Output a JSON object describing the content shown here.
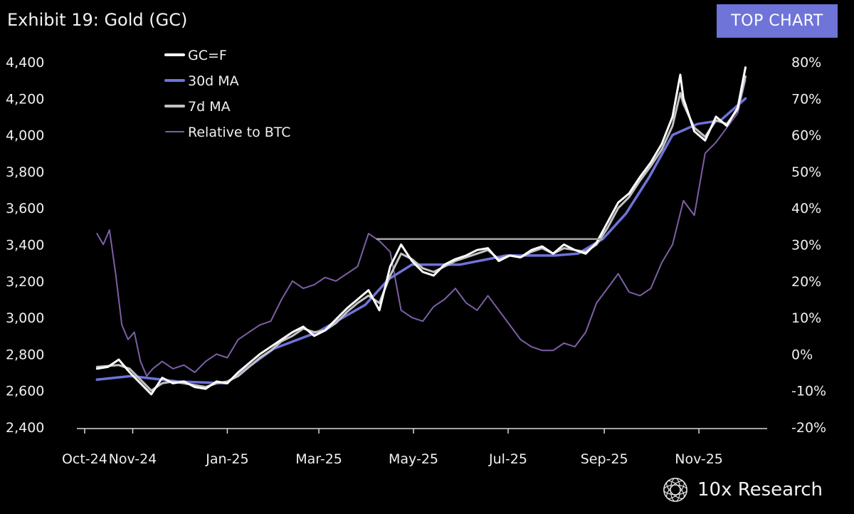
{
  "header": {
    "title": "Exhibit 19: Gold (GC)",
    "badge": "TOP CHART",
    "badge_color": "#6e74d8"
  },
  "brand": {
    "name": "10x Research",
    "logo_icon": "globe-wireframe-icon"
  },
  "chart_data": {
    "type": "line",
    "title": "Exhibit 19: Gold (GC)",
    "x_start": "2024-10-09",
    "x_end": "2025-12-01",
    "x_axis_min": "2024-09-26",
    "x_axis_max": "2025-12-15",
    "x_ticks": [
      {
        "label": "Oct-24",
        "date": "2024-10-01"
      },
      {
        "label": "Nov-24",
        "date": "2024-11-01"
      },
      {
        "label": "Jan-25",
        "date": "2025-01-01"
      },
      {
        "label": "Mar-25",
        "date": "2025-03-01"
      },
      {
        "label": "May-25",
        "date": "2025-05-01"
      },
      {
        "label": "Jul-25",
        "date": "2025-07-01"
      },
      {
        "label": "Sep-25",
        "date": "2025-09-01"
      },
      {
        "label": "Nov-25",
        "date": "2025-11-01"
      }
    ],
    "y_left": {
      "min": 2400,
      "max": 4400,
      "ticks": [
        "2,400",
        "2,600",
        "2,800",
        "3,000",
        "3,200",
        "3,400",
        "3,600",
        "3,800",
        "4,000",
        "4,200",
        "4,400"
      ]
    },
    "y_right": {
      "min": -20,
      "max": 80,
      "ticks": [
        "-20%",
        "-10%",
        "0%",
        "10%",
        "20%",
        "30%",
        "40%",
        "50%",
        "60%",
        "70%",
        "80%"
      ]
    },
    "reference_line": {
      "value": 3430,
      "from": "2025-04-07",
      "to": "2025-08-31",
      "color": "#a6a6a6"
    },
    "series": [
      {
        "name": "GC=F",
        "axis": "left",
        "color": "#ffffff",
        "width": 3,
        "x": [
          "2024-10-09",
          "2024-10-16",
          "2024-10-23",
          "2024-10-30",
          "2024-11-06",
          "2024-11-13",
          "2024-11-20",
          "2024-11-27",
          "2024-12-04",
          "2024-12-11",
          "2024-12-18",
          "2024-12-25",
          "2025-01-01",
          "2025-01-08",
          "2025-01-15",
          "2025-01-22",
          "2025-01-29",
          "2025-02-05",
          "2025-02-12",
          "2025-02-19",
          "2025-02-26",
          "2025-03-05",
          "2025-03-12",
          "2025-03-19",
          "2025-03-26",
          "2025-04-02",
          "2025-04-09",
          "2025-04-16",
          "2025-04-23",
          "2025-04-30",
          "2025-05-07",
          "2025-05-14",
          "2025-05-21",
          "2025-05-28",
          "2025-06-04",
          "2025-06-11",
          "2025-06-18",
          "2025-06-25",
          "2025-07-02",
          "2025-07-09",
          "2025-07-16",
          "2025-07-23",
          "2025-07-30",
          "2025-08-06",
          "2025-08-13",
          "2025-08-20",
          "2025-08-27",
          "2025-09-03",
          "2025-09-10",
          "2025-09-17",
          "2025-09-24",
          "2025-10-01",
          "2025-10-08",
          "2025-10-15",
          "2025-10-20",
          "2025-10-22",
          "2025-10-29",
          "2025-11-05",
          "2025-11-12",
          "2025-11-19",
          "2025-11-26",
          "2025-12-01"
        ],
        "values": [
          2720,
          2730,
          2770,
          2700,
          2640,
          2580,
          2670,
          2640,
          2650,
          2620,
          2610,
          2650,
          2640,
          2700,
          2750,
          2800,
          2840,
          2880,
          2920,
          2950,
          2900,
          2930,
          2990,
          3050,
          3100,
          3150,
          3040,
          3280,
          3400,
          3310,
          3250,
          3230,
          3290,
          3320,
          3340,
          3370,
          3380,
          3310,
          3340,
          3330,
          3370,
          3390,
          3350,
          3400,
          3370,
          3350,
          3410,
          3520,
          3630,
          3680,
          3770,
          3850,
          3950,
          4100,
          4330,
          4200,
          4020,
          3970,
          4100,
          4050,
          4150,
          4370
        ]
      },
      {
        "name": "30d MA",
        "axis": "left",
        "color": "#6f73d9",
        "width": 3.5,
        "x": [
          "2024-10-09",
          "2024-10-31",
          "2024-11-30",
          "2024-12-31",
          "2025-01-31",
          "2025-02-28",
          "2025-03-31",
          "2025-04-15",
          "2025-04-30",
          "2025-05-31",
          "2025-06-30",
          "2025-07-31",
          "2025-08-15",
          "2025-08-31",
          "2025-09-15",
          "2025-09-30",
          "2025-10-15",
          "2025-10-31",
          "2025-11-15",
          "2025-12-01"
        ],
        "values": [
          2660,
          2680,
          2650,
          2640,
          2830,
          2920,
          3070,
          3210,
          3290,
          3290,
          3340,
          3340,
          3350,
          3430,
          3570,
          3770,
          4000,
          4060,
          4080,
          4200
        ]
      },
      {
        "name": "7d MA",
        "axis": "left",
        "color": "#c2c2c2",
        "width": 3,
        "x": [
          "2024-10-09",
          "2024-10-16",
          "2024-10-23",
          "2024-10-30",
          "2024-11-06",
          "2024-11-13",
          "2024-11-20",
          "2024-11-27",
          "2024-12-04",
          "2024-12-11",
          "2024-12-18",
          "2024-12-25",
          "2025-01-01",
          "2025-01-08",
          "2025-01-15",
          "2025-01-22",
          "2025-01-29",
          "2025-02-05",
          "2025-02-12",
          "2025-02-19",
          "2025-02-26",
          "2025-03-05",
          "2025-03-12",
          "2025-03-19",
          "2025-03-26",
          "2025-04-02",
          "2025-04-09",
          "2025-04-16",
          "2025-04-23",
          "2025-04-30",
          "2025-05-07",
          "2025-05-14",
          "2025-05-21",
          "2025-05-28",
          "2025-06-04",
          "2025-06-11",
          "2025-06-18",
          "2025-06-25",
          "2025-07-02",
          "2025-07-09",
          "2025-07-16",
          "2025-07-23",
          "2025-07-30",
          "2025-08-06",
          "2025-08-13",
          "2025-08-20",
          "2025-08-27",
          "2025-09-03",
          "2025-09-10",
          "2025-09-17",
          "2025-09-24",
          "2025-10-01",
          "2025-10-08",
          "2025-10-15",
          "2025-10-20",
          "2025-10-22",
          "2025-10-29",
          "2025-11-05",
          "2025-11-12",
          "2025-11-19",
          "2025-11-26",
          "2025-12-01"
        ],
        "values": [
          2730,
          2735,
          2740,
          2720,
          2660,
          2600,
          2640,
          2650,
          2640,
          2630,
          2620,
          2640,
          2650,
          2680,
          2730,
          2780,
          2820,
          2870,
          2900,
          2940,
          2920,
          2930,
          2970,
          3030,
          3080,
          3120,
          3080,
          3230,
          3350,
          3320,
          3270,
          3250,
          3280,
          3310,
          3330,
          3350,
          3370,
          3320,
          3340,
          3330,
          3360,
          3380,
          3350,
          3380,
          3370,
          3360,
          3400,
          3490,
          3600,
          3660,
          3750,
          3830,
          3920,
          4050,
          4230,
          4170,
          4040,
          3990,
          4080,
          4060,
          4140,
          4320
        ]
      },
      {
        "name": "Relative to BTC",
        "axis": "right",
        "color": "#7c5fa6",
        "width": 2,
        "x": [
          "2024-10-09",
          "2024-10-13",
          "2024-10-17",
          "2024-10-21",
          "2024-10-25",
          "2024-10-29",
          "2024-11-02",
          "2024-11-06",
          "2024-11-10",
          "2024-11-14",
          "2024-11-20",
          "2024-11-27",
          "2024-12-04",
          "2024-12-11",
          "2024-12-18",
          "2024-12-25",
          "2025-01-01",
          "2025-01-08",
          "2025-01-15",
          "2025-01-22",
          "2025-01-29",
          "2025-02-05",
          "2025-02-12",
          "2025-02-19",
          "2025-02-26",
          "2025-03-05",
          "2025-03-12",
          "2025-03-19",
          "2025-03-26",
          "2025-04-02",
          "2025-04-09",
          "2025-04-16",
          "2025-04-23",
          "2025-04-30",
          "2025-05-07",
          "2025-05-14",
          "2025-05-21",
          "2025-05-28",
          "2025-06-04",
          "2025-06-11",
          "2025-06-18",
          "2025-06-25",
          "2025-07-02",
          "2025-07-09",
          "2025-07-16",
          "2025-07-23",
          "2025-07-30",
          "2025-08-06",
          "2025-08-13",
          "2025-08-20",
          "2025-08-27",
          "2025-09-03",
          "2025-09-10",
          "2025-09-17",
          "2025-09-24",
          "2025-10-01",
          "2025-10-08",
          "2025-10-15",
          "2025-10-22",
          "2025-10-29",
          "2025-11-05",
          "2025-11-12",
          "2025-11-19",
          "2025-11-26",
          "2025-12-01"
        ],
        "values": [
          33,
          30,
          34,
          22,
          8,
          4,
          6,
          -2,
          -6,
          -4,
          -2,
          -4,
          -3,
          -5,
          -2,
          0,
          -1,
          4,
          6,
          8,
          9,
          15,
          20,
          18,
          19,
          21,
          20,
          22,
          24,
          33,
          31,
          28,
          12,
          10,
          9,
          13,
          15,
          18,
          14,
          12,
          16,
          12,
          8,
          4,
          2,
          1,
          1,
          3,
          2,
          6,
          14,
          18,
          22,
          17,
          16,
          18,
          25,
          30,
          42,
          38,
          55,
          58,
          62,
          66,
          75
        ]
      }
    ],
    "legend": [
      "GC=F",
      "30d MA",
      "7d MA",
      "Relative to BTC"
    ],
    "legend_position": "top-left"
  }
}
